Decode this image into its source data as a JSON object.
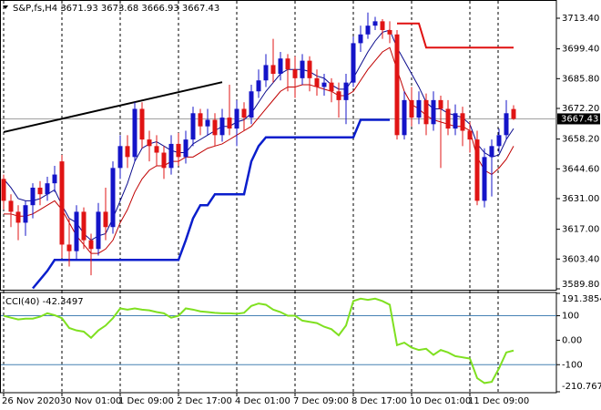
{
  "chart_data": [
    {
      "type": "candlestick",
      "title": "S&P,fs,H4  3671.93 3673.68 3666.93 3667.43",
      "categories": [
        "26 Nov 2020",
        null,
        null,
        null,
        null,
        null,
        null,
        null,
        "30 Nov 01:00",
        null,
        null,
        null,
        null,
        null,
        null,
        null,
        "1 Dec 09:00",
        null,
        null,
        null,
        null,
        null,
        null,
        null,
        "2 Dec 17:00",
        null,
        null,
        null,
        null,
        null,
        null,
        null,
        "4 Dec 01:00",
        null,
        null,
        null,
        null,
        null,
        null,
        null,
        "7 Dec 09:00",
        null,
        null,
        null,
        null,
        null,
        null,
        null,
        "8 Dec 17:00",
        null,
        null,
        null,
        null,
        null,
        null,
        null,
        "10 Dec 01:00",
        null,
        null,
        null,
        null,
        null,
        null,
        null,
        "11 Dec 09:00",
        null,
        null,
        null,
        null,
        null,
        null
      ],
      "open": [
        3640,
        3630,
        3625,
        3620,
        3628,
        3636,
        3633,
        3638,
        3648,
        3610,
        3607,
        3625,
        3612,
        3608,
        3625,
        3618,
        3645,
        3655,
        3650,
        3672,
        3658,
        3655,
        3652,
        3645,
        3656,
        3650,
        3658,
        3670,
        3664,
        3667,
        3660,
        3668,
        3663,
        3672,
        3668,
        3680,
        3685,
        3692,
        3688,
        3695,
        3690,
        3686,
        3694,
        3686,
        3682,
        3684,
        3680,
        3676,
        3684,
        3702,
        3706,
        3710,
        3712,
        3708,
        3706,
        3660,
        3676,
        3668,
        3676,
        3665,
        3676,
        3672,
        3663,
        3670,
        3662,
        3658,
        3630,
        3650,
        3655,
        3660,
        3671.93
      ],
      "high": [
        3642,
        3633,
        3628,
        3630,
        3638,
        3639,
        3641,
        3646,
        3651,
        3622,
        3628,
        3627,
        3615,
        3629,
        3636,
        3648,
        3660,
        3660,
        3675,
        3675,
        3662,
        3660,
        3655,
        3660,
        3661,
        3662,
        3673,
        3672,
        3672,
        3670,
        3672,
        3683,
        3676,
        3675,
        3683,
        3690,
        3697,
        3704,
        3698,
        3697,
        3696,
        3697,
        3696,
        3690,
        3688,
        3686,
        3684,
        3688,
        3705,
        3710,
        3716,
        3714,
        3713,
        3712,
        3708,
        3680,
        3682,
        3680,
        3679,
        3680,
        3678,
        3676,
        3674,
        3673,
        3666,
        3662,
        3654,
        3658,
        3663,
        3676,
        3673.68
      ],
      "low": [
        3626,
        3618,
        3612,
        3614,
        3622,
        3628,
        3630,
        3634,
        3604,
        3600,
        3603,
        3608,
        3596,
        3605,
        3612,
        3615,
        3640,
        3645,
        3648,
        3654,
        3648,
        3646,
        3640,
        3642,
        3646,
        3647,
        3655,
        3660,
        3660,
        3655,
        3657,
        3660,
        3655,
        3662,
        3665,
        3677,
        3682,
        3684,
        3685,
        3680,
        3677,
        3683,
        3680,
        3678,
        3678,
        3675,
        3668,
        3665,
        3682,
        3698,
        3704,
        3708,
        3704,
        3702,
        3658,
        3658,
        3664,
        3665,
        3660,
        3662,
        3645,
        3660,
        3660,
        3655,
        3652,
        3628,
        3627,
        3632,
        3652,
        3658,
        3666.93
      ],
      "close": [
        3630,
        3625,
        3620,
        3628,
        3636,
        3633,
        3638,
        3642,
        3610,
        3607,
        3625,
        3612,
        3608,
        3625,
        3618,
        3645,
        3655,
        3650,
        3672,
        3658,
        3655,
        3652,
        3645,
        3656,
        3650,
        3658,
        3670,
        3664,
        3667,
        3660,
        3668,
        3663,
        3672,
        3668,
        3680,
        3685,
        3692,
        3688,
        3695,
        3690,
        3686,
        3694,
        3686,
        3682,
        3684,
        3680,
        3676,
        3684,
        3702,
        3706,
        3710,
        3712,
        3708,
        3706,
        3660,
        3676,
        3668,
        3676,
        3665,
        3676,
        3672,
        3663,
        3670,
        3662,
        3658,
        3630,
        3650,
        3655,
        3660,
        3670,
        3667.43
      ],
      "up_color": "#1414c8",
      "down_color": "#e01414",
      "series": [
        {
          "color": "#0a0a8c",
          "values": [
            3640,
            3636,
            3631,
            3630,
            3630,
            3631,
            3633,
            3635,
            3628,
            3622,
            3620,
            3615,
            3612,
            3614,
            3615,
            3622,
            3630,
            3638,
            3648,
            3654,
            3656,
            3657,
            3655,
            3653,
            3652,
            3652,
            3656,
            3658,
            3660,
            3662,
            3664,
            3664,
            3666,
            3667,
            3670,
            3675,
            3680,
            3684,
            3688,
            3690,
            3690,
            3690,
            3689,
            3687,
            3686,
            3683,
            3681,
            3681,
            3686,
            3692,
            3698,
            3703,
            3707,
            3708,
            3700,
            3694,
            3688,
            3682,
            3675,
            3672,
            3672,
            3670,
            3669,
            3668,
            3665,
            3656,
            3652,
            3650,
            3651,
            3658,
            3663
          ]
        },
        {
          "color": "#c00000",
          "values": [
            3624,
            3624,
            3623,
            3623,
            3624,
            3626,
            3628,
            3630,
            3626,
            3620,
            3614,
            3610,
            3606,
            3606,
            3608,
            3612,
            3620,
            3626,
            3634,
            3640,
            3644,
            3646,
            3646,
            3648,
            3648,
            3650,
            3650,
            3652,
            3654,
            3655,
            3656,
            3658,
            3660,
            3662,
            3664,
            3668,
            3672,
            3676,
            3680,
            3682,
            3682,
            3683,
            3683,
            3682,
            3681,
            3680,
            3678,
            3678,
            3680,
            3685,
            3690,
            3694,
            3698,
            3700,
            3690,
            3680,
            3674,
            3672,
            3669,
            3667,
            3666,
            3665,
            3664,
            3664,
            3662,
            3650,
            3644,
            3642,
            3645,
            3649,
            3655
          ]
        },
        {
          "color": "#0a1ecc",
          "values": [
            null,
            null,
            null,
            null,
            3590,
            3594,
            3598,
            3603,
            3603,
            3603,
            3603,
            3603,
            3603,
            3603,
            3603,
            3603,
            3603,
            3603,
            3603,
            3603,
            3603,
            3603,
            3603,
            3603,
            3603,
            3612,
            3622,
            3628,
            3628,
            3633,
            3633,
            3633,
            3633,
            3633,
            3648,
            3655,
            3659,
            3659,
            3659,
            3659,
            3659,
            3659,
            3659,
            3659,
            3659,
            3659,
            3659,
            3659,
            3659,
            3667,
            3667,
            3667,
            3667,
            3667,
            null,
            null,
            null,
            null,
            null,
            null,
            null,
            null,
            null,
            null,
            null,
            null,
            null,
            null,
            null,
            null,
            null
          ]
        },
        {
          "color": "#e01010",
          "values": [
            null,
            null,
            null,
            null,
            null,
            null,
            null,
            null,
            null,
            null,
            null,
            null,
            null,
            null,
            null,
            null,
            null,
            null,
            null,
            null,
            null,
            null,
            null,
            null,
            null,
            null,
            null,
            null,
            null,
            null,
            null,
            null,
            null,
            null,
            null,
            null,
            null,
            null,
            null,
            null,
            null,
            null,
            null,
            null,
            null,
            null,
            null,
            null,
            null,
            null,
            null,
            null,
            null,
            null,
            3711,
            3711,
            3711,
            3711,
            3700,
            3700,
            3700,
            3700,
            3700,
            3700,
            3700,
            3700,
            3700,
            3700,
            3700,
            3700,
            3700
          ]
        }
      ],
      "trendline": {
        "x": [
          0,
          30
        ],
        "y": [
          3661.4,
          3684.2
        ],
        "color": "#000000"
      },
      "ylim": [
        3589.38,
        3720.06
      ],
      "yticks": [
        {
          "value": 3713.4,
          "label": "3713.40"
        },
        {
          "value": 3699.4,
          "label": "3699.40"
        },
        {
          "value": 3685.8,
          "label": "3685.80"
        },
        {
          "value": 3672.2,
          "label": "3672.20"
        },
        {
          "value": 3658.2,
          "label": "3658.20"
        },
        {
          "value": 3644.6,
          "label": "3644.60"
        },
        {
          "value": 3631,
          "label": "3631.00"
        },
        {
          "value": 3617,
          "label": "3617.00"
        },
        {
          "value": 3603.4,
          "label": "3603.40"
        },
        {
          "value": 3589.8,
          "label": "3589.80"
        }
      ]
    },
    {
      "type": "line",
      "title": "CCI(40) -42.3497",
      "color": "#7fe020",
      "values": [
        100,
        92,
        85,
        88,
        88,
        96,
        110,
        102,
        90,
        50,
        40,
        35,
        10,
        40,
        60,
        90,
        130,
        125,
        130,
        125,
        122,
        115,
        110,
        92,
        100,
        130,
        125,
        118,
        115,
        112,
        110,
        110,
        108,
        112,
        140,
        150,
        145,
        125,
        115,
        100,
        100,
        80,
        75,
        70,
        55,
        45,
        20,
        60,
        160,
        170,
        165,
        170,
        160,
        145,
        -20,
        -10,
        -30,
        -40,
        -35,
        -60,
        -40,
        -50,
        -65,
        -70,
        -75,
        -155,
        -175,
        -170,
        -115,
        -50,
        -42.3497
      ],
      "levels": [
        100,
        -100
      ],
      "level_color": "#4682b4",
      "ylim": [
        -210.7677,
        191.3854
      ],
      "yticks": [
        191.3854,
        100,
        {
          "value": 0,
          "label": "0.00"
        },
        -100,
        -210.7677
      ]
    }
  ]
}
